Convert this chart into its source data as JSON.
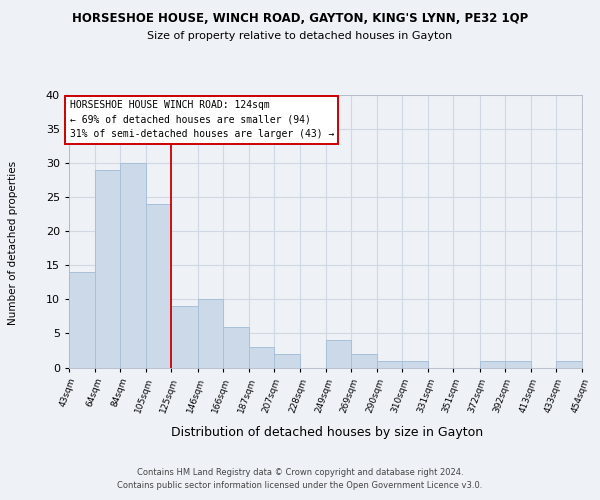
{
  "title": "HORSESHOE HOUSE, WINCH ROAD, GAYTON, KING'S LYNN, PE32 1QP",
  "subtitle": "Size of property relative to detached houses in Gayton",
  "xlabel": "Distribution of detached houses by size in Gayton",
  "ylabel": "Number of detached properties",
  "bar_color": "#ccd9e8",
  "bar_edge_color": "#a8c0d8",
  "bins": [
    43,
    64,
    84,
    105,
    125,
    146,
    166,
    187,
    207,
    228,
    249,
    269,
    290,
    310,
    331,
    351,
    372,
    392,
    413,
    433,
    454
  ],
  "counts": [
    14,
    29,
    30,
    24,
    9,
    10,
    6,
    3,
    2,
    0,
    4,
    2,
    1,
    1,
    0,
    0,
    1,
    1,
    0,
    1
  ],
  "tick_labels": [
    "43sqm",
    "64sqm",
    "84sqm",
    "105sqm",
    "125sqm",
    "146sqm",
    "166sqm",
    "187sqm",
    "207sqm",
    "228sqm",
    "249sqm",
    "269sqm",
    "290sqm",
    "310sqm",
    "331sqm",
    "351sqm",
    "372sqm",
    "392sqm",
    "413sqm",
    "433sqm",
    "454sqm"
  ],
  "property_line_color": "#cc0000",
  "property_bin_index": 4,
  "annotation_title": "HORSESHOE HOUSE WINCH ROAD: 124sqm",
  "annotation_line1": "← 69% of detached houses are smaller (94)",
  "annotation_line2": "31% of semi-detached houses are larger (43) →",
  "annotation_box_color": "#ffffff",
  "annotation_box_edge": "#cc0000",
  "footer_line1": "Contains HM Land Registry data © Crown copyright and database right 2024.",
  "footer_line2": "Contains public sector information licensed under the Open Government Licence v3.0.",
  "ylim": [
    0,
    40
  ],
  "grid_color": "#d0d8e4",
  "background_color": "#eef2f7",
  "plot_background": "#eef2f7"
}
